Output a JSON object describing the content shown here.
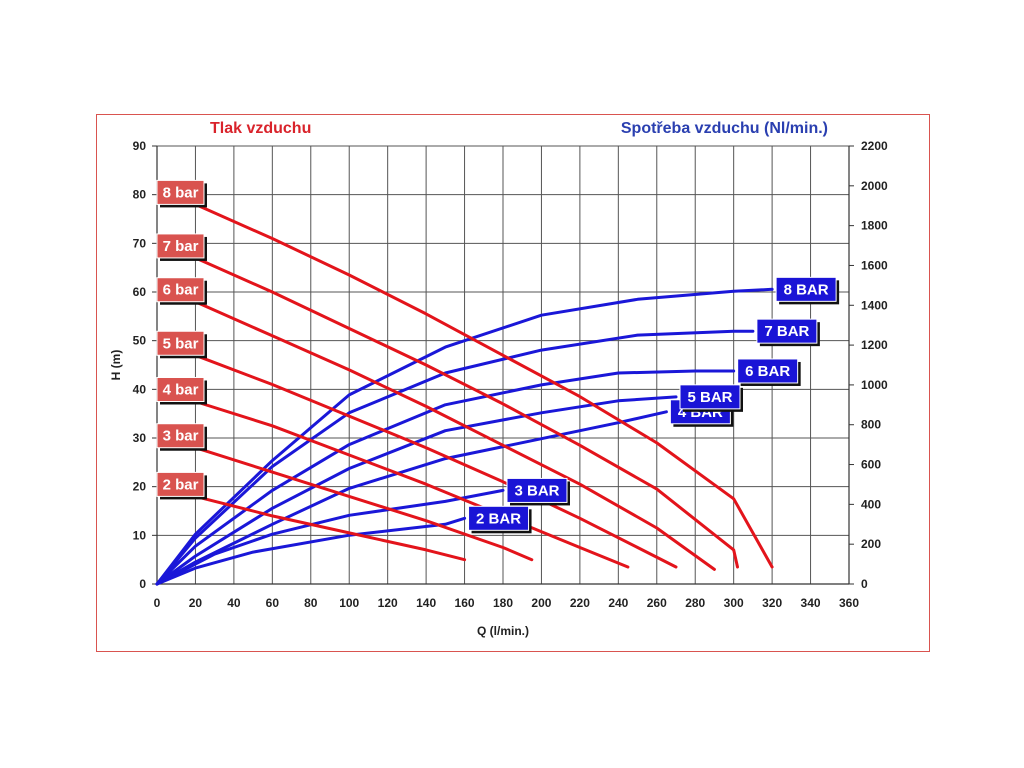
{
  "chart_data": {
    "type": "line",
    "title_left": "Tlak vzduchu",
    "title_right": "Spotřeba vzduchu (Nl/min.)",
    "xlabel": "Q (l/min.)",
    "ylabel": "H (m)",
    "xlim": [
      0,
      360
    ],
    "ylim": [
      0,
      90
    ],
    "y2lim": [
      0,
      2200
    ],
    "x_ticks": [
      0,
      20,
      40,
      60,
      80,
      100,
      120,
      140,
      160,
      180,
      200,
      220,
      240,
      260,
      280,
      300,
      320,
      340,
      360
    ],
    "y_ticks": [
      0,
      10,
      20,
      30,
      40,
      50,
      60,
      70,
      80,
      90
    ],
    "y2_ticks": [
      0,
      200,
      400,
      600,
      800,
      1000,
      1200,
      1400,
      1600,
      1800,
      2000,
      2200
    ],
    "grid": true,
    "colors": {
      "pressure": "#e3141b",
      "consumption": "#1a17d8",
      "label_red": "#d9534f",
      "label_blue": "#1a14d6"
    },
    "pressure_series": [
      {
        "name": "2 bar",
        "points": [
          [
            20,
            18
          ],
          [
            60,
            14
          ],
          [
            100,
            10.5
          ],
          [
            140,
            7
          ],
          [
            160,
            5
          ]
        ]
      },
      {
        "name": "3 bar",
        "points": [
          [
            20,
            28
          ],
          [
            60,
            23
          ],
          [
            100,
            18
          ],
          [
            140,
            13
          ],
          [
            180,
            7.5
          ],
          [
            195,
            5
          ]
        ]
      },
      {
        "name": "4 bar",
        "points": [
          [
            20,
            37.5
          ],
          [
            60,
            32.5
          ],
          [
            100,
            26.5
          ],
          [
            140,
            20.5
          ],
          [
            180,
            14
          ],
          [
            220,
            7.5
          ],
          [
            245,
            3.5
          ]
        ]
      },
      {
        "name": "5 bar",
        "points": [
          [
            20,
            47
          ],
          [
            60,
            41
          ],
          [
            100,
            34.5
          ],
          [
            140,
            28
          ],
          [
            180,
            21
          ],
          [
            220,
            13.5
          ],
          [
            250,
            7.5
          ],
          [
            270,
            3.5
          ]
        ]
      },
      {
        "name": "6 bar",
        "points": [
          [
            20,
            58
          ],
          [
            60,
            51
          ],
          [
            100,
            44
          ],
          [
            140,
            36.5
          ],
          [
            180,
            28.5
          ],
          [
            220,
            20.5
          ],
          [
            260,
            11.5
          ],
          [
            290,
            3
          ]
        ]
      },
      {
        "name": "7 bar",
        "points": [
          [
            20,
            67
          ],
          [
            60,
            60
          ],
          [
            100,
            52.5
          ],
          [
            140,
            45
          ],
          [
            180,
            37
          ],
          [
            220,
            28.5
          ],
          [
            260,
            19.5
          ],
          [
            300,
            7
          ],
          [
            302,
            3.5
          ]
        ]
      },
      {
        "name": "8 bar",
        "points": [
          [
            20,
            78
          ],
          [
            60,
            71
          ],
          [
            100,
            63.5
          ],
          [
            140,
            55.5
          ],
          [
            180,
            47
          ],
          [
            220,
            38.5
          ],
          [
            260,
            29
          ],
          [
            300,
            17.5
          ],
          [
            320,
            3.5
          ]
        ]
      }
    ],
    "consumption_series": [
      {
        "name": "2 BAR",
        "points": [
          [
            0,
            0
          ],
          [
            20,
            80
          ],
          [
            50,
            160
          ],
          [
            100,
            245
          ],
          [
            150,
            300
          ],
          [
            160,
            330
          ]
        ]
      },
      {
        "name": "3 BAR",
        "points": [
          [
            0,
            0
          ],
          [
            30,
            150
          ],
          [
            60,
            250
          ],
          [
            100,
            345
          ],
          [
            150,
            415
          ],
          [
            180,
            470
          ]
        ]
      },
      {
        "name": "4 BAR",
        "points": [
          [
            0,
            0
          ],
          [
            20,
            110
          ],
          [
            60,
            300
          ],
          [
            100,
            480
          ],
          [
            150,
            630
          ],
          [
            200,
            730
          ],
          [
            240,
            810
          ],
          [
            265,
            865
          ]
        ]
      },
      {
        "name": "5 BAR",
        "points": [
          [
            0,
            0
          ],
          [
            20,
            140
          ],
          [
            60,
            380
          ],
          [
            100,
            580
          ],
          [
            150,
            770
          ],
          [
            200,
            860
          ],
          [
            240,
            920
          ],
          [
            270,
            940
          ]
        ]
      },
      {
        "name": "6 BAR",
        "points": [
          [
            0,
            0
          ],
          [
            20,
            190
          ],
          [
            60,
            470
          ],
          [
            100,
            700
          ],
          [
            150,
            900
          ],
          [
            200,
            1000
          ],
          [
            240,
            1060
          ],
          [
            280,
            1070
          ],
          [
            300,
            1070
          ]
        ]
      },
      {
        "name": "7 BAR",
        "points": [
          [
            0,
            0
          ],
          [
            20,
            230
          ],
          [
            60,
            590
          ],
          [
            100,
            860
          ],
          [
            150,
            1060
          ],
          [
            200,
            1175
          ],
          [
            250,
            1250
          ],
          [
            300,
            1270
          ],
          [
            310,
            1270
          ]
        ]
      },
      {
        "name": "8 BAR",
        "points": [
          [
            0,
            0
          ],
          [
            20,
            250
          ],
          [
            60,
            620
          ],
          [
            100,
            950
          ],
          [
            150,
            1190
          ],
          [
            200,
            1350
          ],
          [
            250,
            1430
          ],
          [
            300,
            1470
          ],
          [
            320,
            1480
          ]
        ]
      }
    ]
  }
}
